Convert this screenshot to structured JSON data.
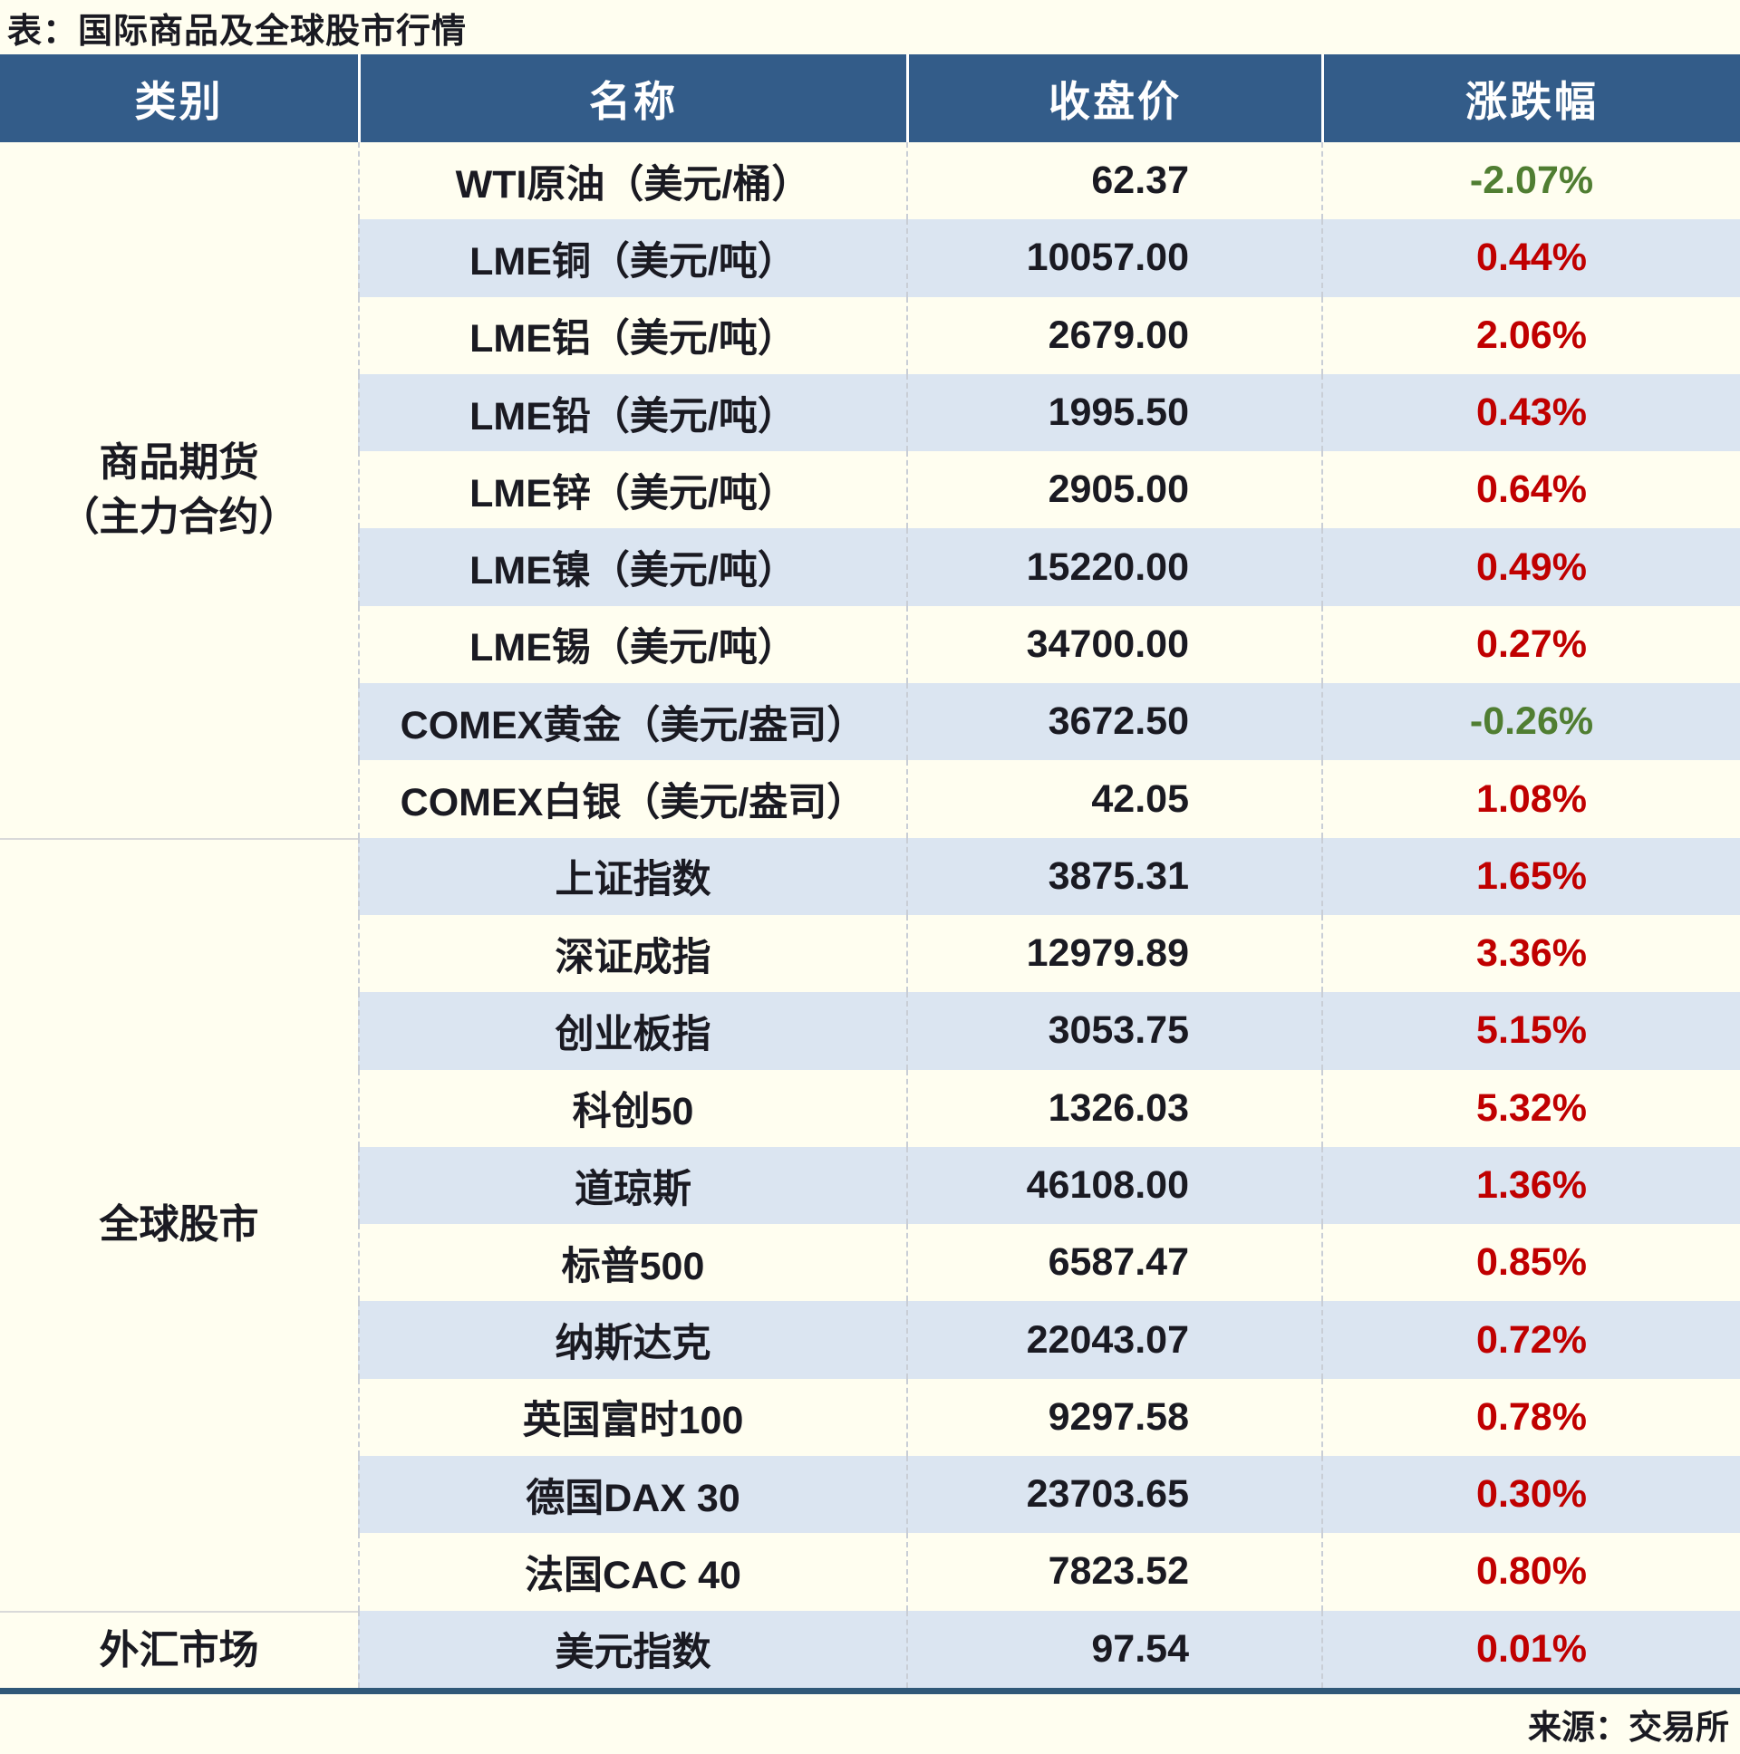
{
  "title": "表：国际商品及全球股市行情",
  "source": "来源：交易所",
  "chart_data": {
    "type": "table",
    "title": "国际商品及全球股市行情",
    "columns": [
      "类别",
      "名称",
      "收盘价",
      "涨跌幅"
    ],
    "sections": [
      {
        "category": "商品期货\n（主力合约）",
        "rows": [
          {
            "name": "WTI原油（美元/桶）",
            "close": "62.37",
            "change": "-2.07%"
          },
          {
            "name": "LME铜（美元/吨）",
            "close": "10057.00",
            "change": "0.44%"
          },
          {
            "name": "LME铝（美元/吨）",
            "close": "2679.00",
            "change": "2.06%"
          },
          {
            "name": "LME铅（美元/吨）",
            "close": "1995.50",
            "change": "0.43%"
          },
          {
            "name": "LME锌（美元/吨）",
            "close": "2905.00",
            "change": "0.64%"
          },
          {
            "name": "LME镍（美元/吨）",
            "close": "15220.00",
            "change": "0.49%"
          },
          {
            "name": "LME锡（美元/吨）",
            "close": "34700.00",
            "change": "0.27%"
          },
          {
            "name": "COMEX黄金（美元/盎司）",
            "close": "3672.50",
            "change": "-0.26%"
          },
          {
            "name": "COMEX白银（美元/盎司）",
            "close": "42.05",
            "change": "1.08%"
          }
        ]
      },
      {
        "category": "全球股市",
        "rows": [
          {
            "name": "上证指数",
            "close": "3875.31",
            "change": "1.65%"
          },
          {
            "name": "深证成指",
            "close": "12979.89",
            "change": "3.36%"
          },
          {
            "name": "创业板指",
            "close": "3053.75",
            "change": "5.15%"
          },
          {
            "name": "科创50",
            "close": "1326.03",
            "change": "5.32%"
          },
          {
            "name": "道琼斯",
            "close": "46108.00",
            "change": "1.36%"
          },
          {
            "name": "标普500",
            "close": "6587.47",
            "change": "0.85%"
          },
          {
            "name": "纳斯达克",
            "close": "22043.07",
            "change": "0.72%"
          },
          {
            "name": "英国富时100",
            "close": "9297.58",
            "change": "0.78%"
          },
          {
            "name": "德国DAX 30",
            "close": "23703.65",
            "change": "0.30%"
          },
          {
            "name": "法国CAC 40",
            "close": "7823.52",
            "change": "0.80%"
          }
        ]
      },
      {
        "category": "外汇市场",
        "rows": [
          {
            "name": "美元指数",
            "close": "97.54",
            "change": "0.01%"
          }
        ]
      }
    ]
  },
  "colors": {
    "page_bg": "#FFFEF0",
    "header_bg": "#335C89",
    "header_text": "#FFFFFF",
    "stripe": "#DBE5F1",
    "text": "#1A1A22",
    "up": "#C00000",
    "down": "#507E32",
    "sep": "#C9CED6",
    "divider": "#D9D9D9",
    "bottom_border": "#305878"
  }
}
